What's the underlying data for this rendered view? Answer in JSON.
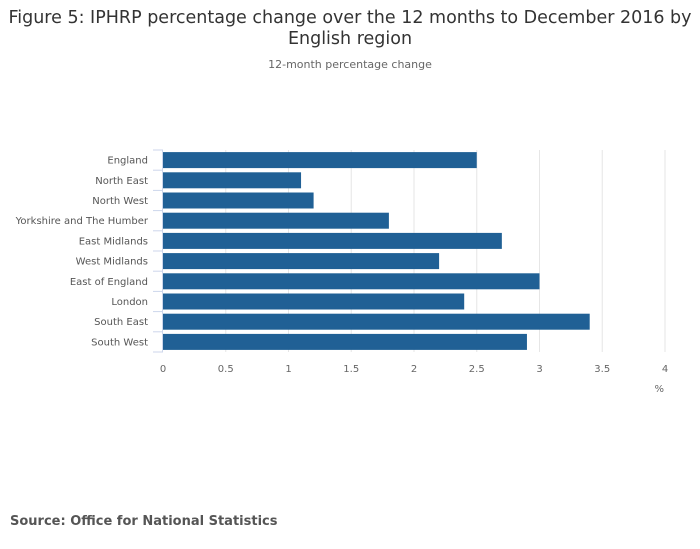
{
  "chart_data": {
    "type": "bar",
    "orientation": "horizontal",
    "title": "Figure 5: IPHRP percentage change over the 12 months to December 2016 by English region",
    "subtitle": "12-month percentage change",
    "xlabel": "%",
    "ylabel": "",
    "categories": [
      "England",
      "North East",
      "North West",
      "Yorkshire and The Humber",
      "East Midlands",
      "West Midlands",
      "East of England",
      "London",
      "South East",
      "South West"
    ],
    "values": [
      2.5,
      1.1,
      1.2,
      1.8,
      2.7,
      2.2,
      3.0,
      2.4,
      3.4,
      2.9
    ],
    "xlim": [
      0,
      4
    ],
    "xticks": [
      "0",
      "0.5",
      "1",
      "1.5",
      "2",
      "2.5",
      "3",
      "3.5",
      "4"
    ],
    "grid": true,
    "bar_color": "#206095"
  },
  "source": "Source: Office for National Statistics"
}
